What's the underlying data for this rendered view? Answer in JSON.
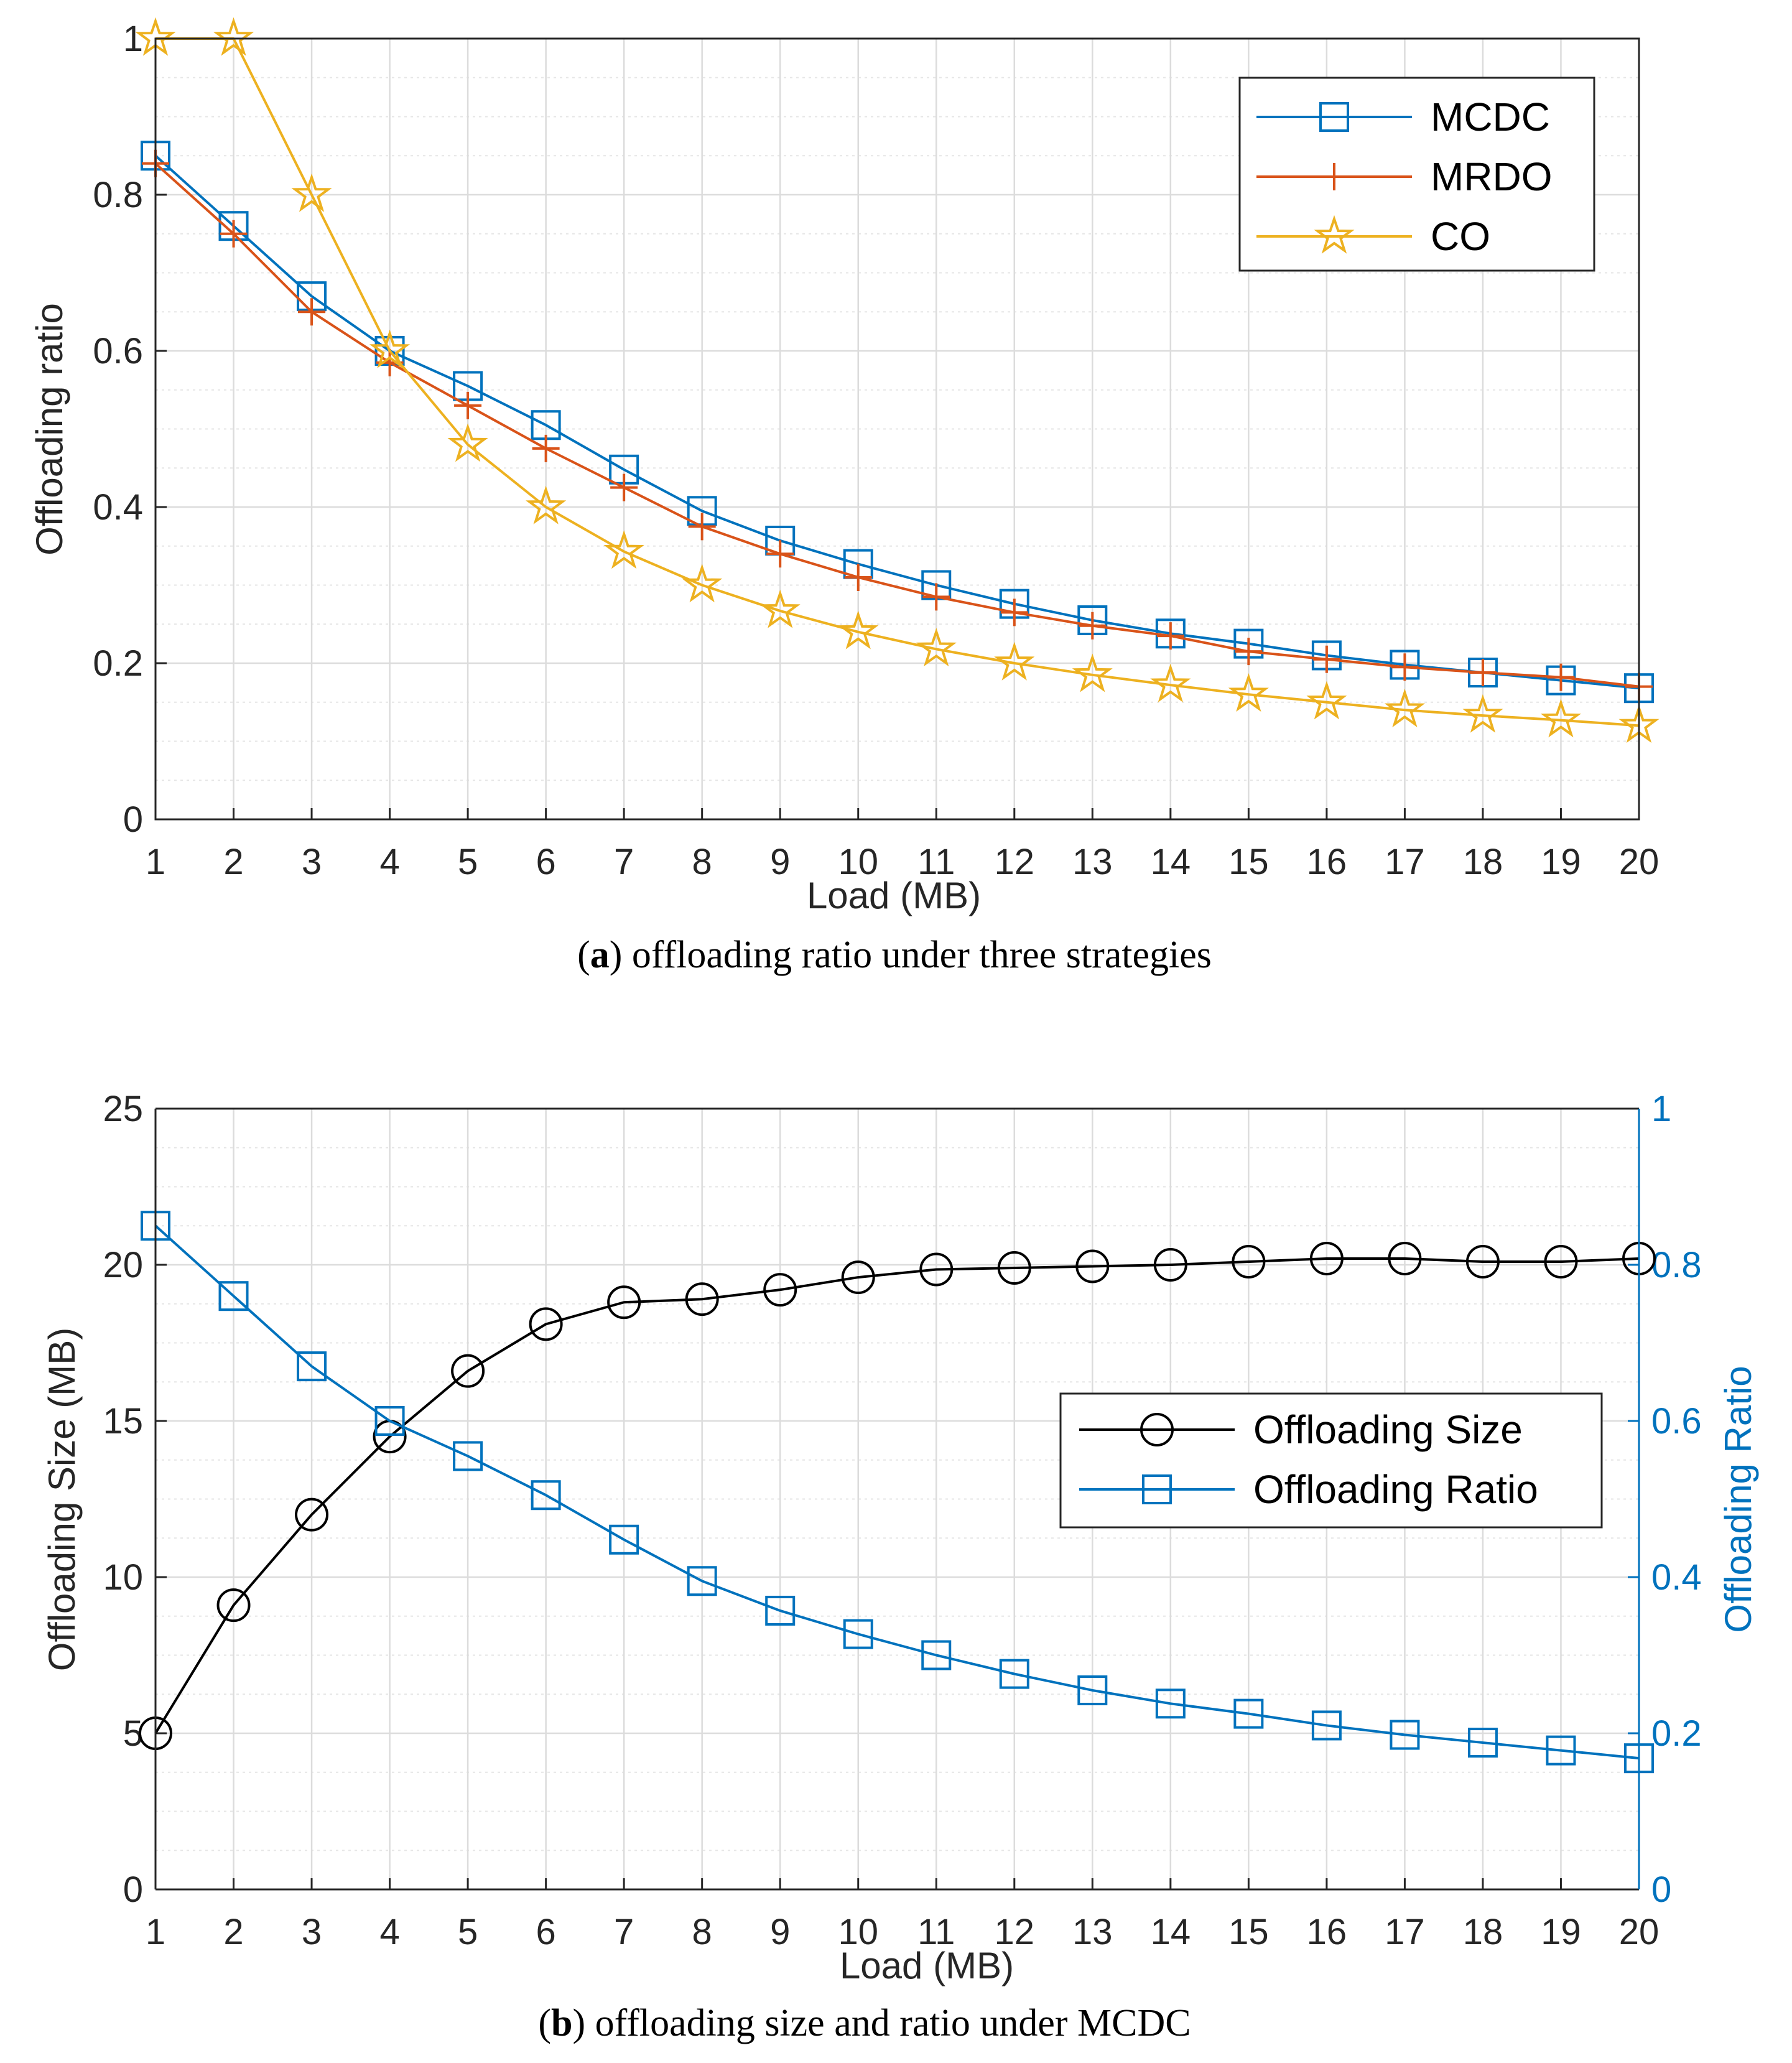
{
  "colors": {
    "mcdc": "#0072BD",
    "mrdo": "#D95319",
    "co": "#EDB120",
    "size": "#000000",
    "ratio": "#0072BD",
    "axis": "#262626",
    "grid": "#dcdcdc"
  },
  "chart_data": [
    {
      "type": "line",
      "caption": {
        "label": "a",
        "text": " offloading ratio under three strategies"
      },
      "xlabel": "Load (MB)",
      "ylabel": "Offloading ratio",
      "xlim": [
        1,
        20
      ],
      "ylim": [
        0,
        1
      ],
      "xticks": [
        "1",
        "2",
        "3",
        "4",
        "5",
        "6",
        "7",
        "8",
        "9",
        "10",
        "11",
        "12",
        "13",
        "14",
        "15",
        "16",
        "17",
        "18",
        "19",
        "20"
      ],
      "yticks": [
        "0",
        "0.2",
        "0.4",
        "0.6",
        "0.8",
        "1"
      ],
      "grid": true,
      "legend_position": "top-right",
      "x": [
        1,
        2,
        3,
        4,
        5,
        6,
        7,
        8,
        9,
        10,
        11,
        12,
        13,
        14,
        15,
        16,
        17,
        18,
        19,
        20
      ],
      "series": [
        {
          "name": "MCDC",
          "marker": "square",
          "values": [
            0.85,
            0.76,
            0.67,
            0.6,
            0.555,
            0.505,
            0.448,
            0.395,
            0.357,
            0.327,
            0.3,
            0.276,
            0.255,
            0.238,
            0.225,
            0.21,
            0.198,
            0.188,
            0.178,
            0.168
          ]
        },
        {
          "name": "MRDO",
          "marker": "plus",
          "values": [
            0.84,
            0.75,
            0.65,
            0.585,
            0.53,
            0.475,
            0.425,
            0.375,
            0.34,
            0.31,
            0.285,
            0.265,
            0.248,
            0.235,
            0.215,
            0.205,
            0.195,
            0.188,
            0.182,
            0.17
          ]
        },
        {
          "name": "CO",
          "marker": "star",
          "values": [
            1.0,
            1.0,
            0.8,
            0.6,
            0.48,
            0.4,
            0.343,
            0.3,
            0.267,
            0.24,
            0.218,
            0.2,
            0.185,
            0.172,
            0.16,
            0.15,
            0.14,
            0.133,
            0.127,
            0.12
          ]
        }
      ]
    },
    {
      "type": "line",
      "caption": {
        "label": "b",
        "text": " offloading size and ratio under MCDC"
      },
      "xlabel": "Load (MB)",
      "ylabel_left": "Offloading Size (MB)",
      "ylabel_right": "Offloading Ratio",
      "xlim": [
        1,
        20
      ],
      "ylim_left": [
        0,
        25
      ],
      "ylim_right": [
        0,
        1
      ],
      "xticks": [
        "1",
        "2",
        "3",
        "4",
        "5",
        "6",
        "7",
        "8",
        "9",
        "10",
        "11",
        "12",
        "13",
        "14",
        "15",
        "16",
        "17",
        "18",
        "19",
        "20"
      ],
      "yticks_left": [
        "0",
        "5",
        "10",
        "15",
        "20",
        "25"
      ],
      "yticks_right": [
        "0",
        "0.2",
        "0.4",
        "0.6",
        "0.8",
        "1"
      ],
      "grid": true,
      "legend_position": "center-right",
      "x": [
        1,
        2,
        3,
        4,
        5,
        6,
        7,
        8,
        9,
        10,
        11,
        12,
        13,
        14,
        15,
        16,
        17,
        18,
        19,
        20
      ],
      "series": [
        {
          "name": "Offloading Size",
          "axis": "left",
          "marker": "circle",
          "values": [
            5.0,
            9.1,
            12.0,
            14.5,
            16.6,
            18.1,
            18.8,
            18.9,
            19.2,
            19.6,
            19.85,
            19.9,
            19.95,
            20.0,
            20.1,
            20.2,
            20.2,
            20.1,
            20.1,
            20.2
          ]
        },
        {
          "name": "Offloading Ratio",
          "axis": "right",
          "marker": "square",
          "values": [
            0.85,
            0.76,
            0.67,
            0.6,
            0.555,
            0.505,
            0.448,
            0.395,
            0.357,
            0.327,
            0.3,
            0.276,
            0.255,
            0.238,
            0.225,
            0.21,
            0.198,
            0.188,
            0.178,
            0.168
          ]
        }
      ]
    }
  ]
}
